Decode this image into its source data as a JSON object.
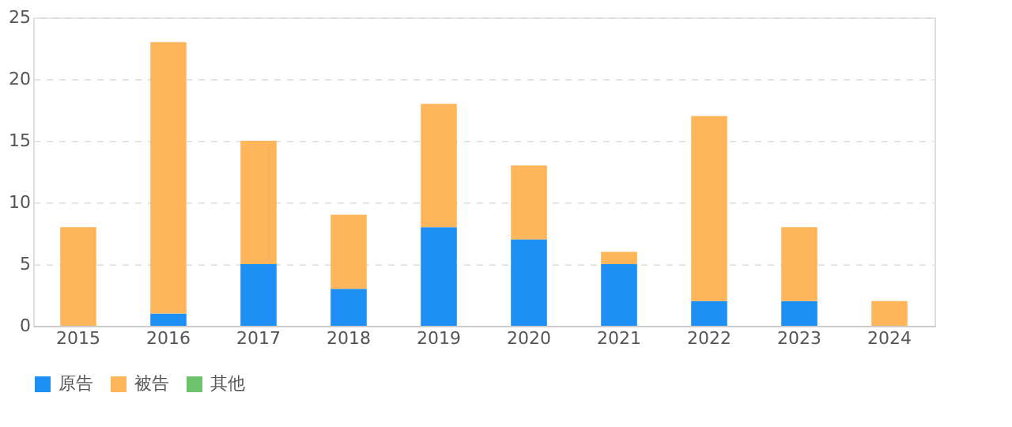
{
  "chart_data": {
    "type": "bar",
    "stacked": true,
    "categories": [
      "2015",
      "2016",
      "2017",
      "2018",
      "2019",
      "2020",
      "2021",
      "2022",
      "2023",
      "2024"
    ],
    "series": [
      {
        "name": "原告",
        "color": "#1e90f5",
        "values": [
          0,
          1,
          5,
          3,
          8,
          7,
          5,
          2,
          2,
          0
        ]
      },
      {
        "name": "被告",
        "color": "#ffb55a",
        "values": [
          8,
          22,
          10,
          6,
          10,
          6,
          1,
          15,
          6,
          2
        ]
      },
      {
        "name": "其他",
        "color": "#6cc36b",
        "values": [
          0,
          0,
          0,
          0,
          0,
          0,
          0,
          0,
          0,
          0
        ]
      }
    ],
    "ylim": [
      0,
      25
    ],
    "yticks": [
      0,
      5,
      10,
      15,
      20,
      25
    ],
    "grid": "y",
    "legend": "bottom"
  }
}
